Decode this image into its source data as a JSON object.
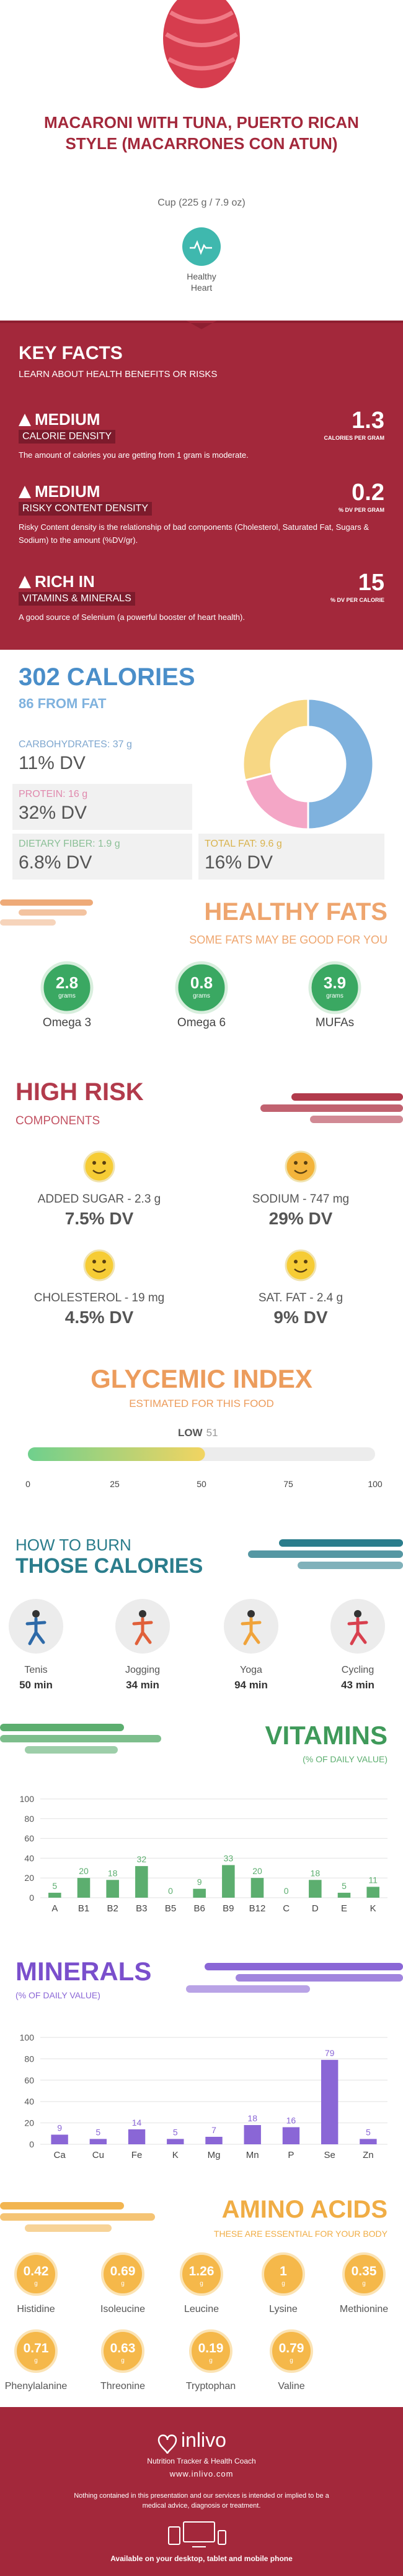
{
  "header": {
    "title": "MACARONI WITH TUNA, PUERTO RICAN STYLE (MACARRONES CON ATUN)",
    "serving": "Cup (225 g / 7.9 oz)",
    "badge": "Healthy Heart"
  },
  "key_facts": {
    "title": "KEY FACTS",
    "subtitle": "LEARN ABOUT HEALTH BENEFITS OR RISKS",
    "items": [
      {
        "level": "MEDIUM",
        "name": "CALORIE DENSITY",
        "value": "1.3",
        "unit": "CALORIES PER GRAM",
        "description": "The amount of calories you are getting from 1 gram is moderate."
      },
      {
        "level": "MEDIUM",
        "name": "RISKY CONTENT DENSITY",
        "value": "0.2",
        "unit": "% DV PER GRAM",
        "description": "Risky Content density is the relationship of bad components (Cholesterol, Saturated Fat, Sugars & Sodium) to the amount (%DV/gr)."
      },
      {
        "level": "RICH IN",
        "name": "VITAMINS & MINERALS",
        "value": "15",
        "unit": "% DV PER CALORIE",
        "description": "A good source of Selenium (a powerful booster of heart health)."
      }
    ]
  },
  "calories": {
    "title": "302 CALORIES",
    "subtitle": "86 FROM FAT",
    "nutrients": [
      {
        "label": "CARBOHYDRATES: 37 g",
        "dv": "11% DV"
      },
      {
        "label": "PROTEIN: 16 g",
        "dv": "32% DV"
      },
      {
        "label": "DIETARY FIBER: 1.9 g",
        "dv": "6.8% DV"
      },
      {
        "label": "TOTAL FAT: 9.6 g",
        "dv": "16% DV"
      }
    ]
  },
  "healthy_fats": {
    "title": "HEALTHY FATS",
    "subtitle": "SOME FATS MAY BE GOOD FOR YOU",
    "unit": "grams",
    "items": [
      {
        "value": "2.8",
        "name": "Omega 3"
      },
      {
        "value": "0.8",
        "name": "Omega 6"
      },
      {
        "value": "3.9",
        "name": "MUFAs"
      }
    ]
  },
  "high_risk": {
    "title": "HIGH RISK",
    "subtitle": "COMPONENTS",
    "items": [
      {
        "label": "ADDED SUGAR - 2.3 g",
        "dv": "7.5% DV"
      },
      {
        "label": "SODIUM - 747 mg",
        "dv": "29% DV"
      },
      {
        "label": "CHOLESTEROL - 19 mg",
        "dv": "4.5% DV"
      },
      {
        "label": "SAT. FAT - 2.4 g",
        "dv": "9% DV"
      }
    ]
  },
  "burn": {
    "title": "HOW TO BURN",
    "subtitle": "THOSE CALORIES",
    "activities": [
      {
        "name": "Tenis",
        "time": "50 min"
      },
      {
        "name": "Jogging",
        "time": "34 min"
      },
      {
        "name": "Yoga",
        "time": "94 min"
      },
      {
        "name": "Cycling",
        "time": "43 min"
      }
    ]
  },
  "amino_acids": {
    "title": "AMINO ACIDS",
    "subtitle": "THESE ARE ESSENTIAL FOR YOUR BODY",
    "unit": "g",
    "items": [
      {
        "value": "0.42",
        "name": "Histidine"
      },
      {
        "value": "0.69",
        "name": "Isoleucine"
      },
      {
        "value": "1.26",
        "name": "Leucine"
      },
      {
        "value": "1",
        "name": "Lysine"
      },
      {
        "value": "0.35",
        "name": "Methionine"
      },
      {
        "value": "0.71",
        "name": "Phenylalanine"
      },
      {
        "value": "0.63",
        "name": "Threonine"
      },
      {
        "value": "0.19",
        "name": "Tryptophan"
      },
      {
        "value": "0.79",
        "name": "Valine"
      }
    ]
  },
  "footer": {
    "brand": "inlivo",
    "tagline": "Nutrition Tracker & Health Coach",
    "url": "www.inlivo.com",
    "disclaimer": "Nothing contained in this presentation and our services is intended or implied to be a medical advice, diagnosis or treatment.",
    "available": "Available on your desktop, tablet and mobile phone"
  },
  "chart_data": [
    {
      "type": "pie",
      "values": [
        50,
        21,
        29
      ],
      "colors": [
        "#7fb2de",
        "#f4a6c6",
        "#f7d784"
      ]
    },
    {
      "type": "gauge",
      "title": "GLYCEMIC INDEX",
      "subtitle": "ESTIMATED FOR THIS FOOD",
      "rating": "LOW",
      "value": 51,
      "xlim": [
        0,
        100
      ],
      "xticks": [
        0,
        25,
        50,
        75,
        100
      ]
    },
    {
      "type": "bar",
      "title": "VITAMINS",
      "subtitle": "(% OF DAILY VALUE)",
      "categories": [
        "A",
        "B1",
        "B2",
        "B3",
        "B5",
        "B6",
        "B9",
        "B12",
        "C",
        "D",
        "E",
        "K"
      ],
      "values": [
        5,
        20,
        18,
        32,
        0,
        9,
        33,
        20,
        0,
        18,
        5,
        11
      ],
      "color": "#5cae6f",
      "ylim": [
        0,
        100
      ],
      "yticks": [
        0,
        20,
        40,
        60,
        80,
        100
      ],
      "grid": true
    },
    {
      "type": "bar",
      "title": "MINERALS",
      "subtitle": "(% OF DAILY VALUE)",
      "categories": [
        "Ca",
        "Cu",
        "Fe",
        "K",
        "Mg",
        "Mn",
        "P",
        "Se",
        "Zn"
      ],
      "values": [
        9,
        5,
        14,
        5,
        7,
        18,
        16,
        79,
        5
      ],
      "color": "#8a66d6",
      "ylim": [
        0,
        100
      ],
      "yticks": [
        0,
        20,
        40,
        60,
        80,
        100
      ],
      "grid": true
    }
  ]
}
